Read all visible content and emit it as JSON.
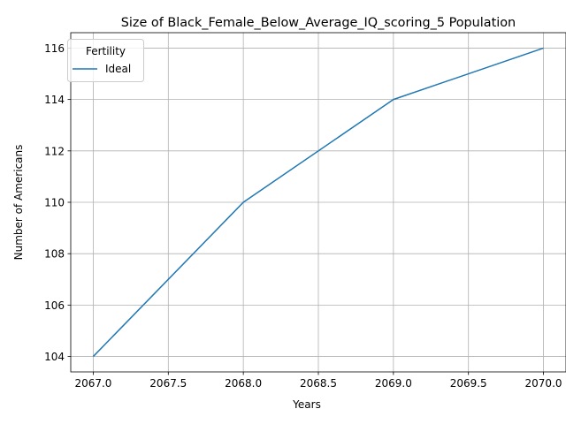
{
  "chart_data": {
    "type": "line",
    "title": "Size of Black_Female_Below_Average_IQ_scoring_5 Population",
    "xlabel": "Years",
    "ylabel": "Number of Americans",
    "xlim": [
      2066.85,
      2070.15
    ],
    "ylim": [
      103.4,
      116.6
    ],
    "xticks": [
      2067.0,
      2067.5,
      2068.0,
      2068.5,
      2069.0,
      2069.5,
      2070.0
    ],
    "xtick_labels": [
      "2067.0",
      "2067.5",
      "2068.0",
      "2068.5",
      "2069.0",
      "2069.5",
      "2070.0"
    ],
    "yticks": [
      104,
      106,
      108,
      110,
      112,
      114,
      116
    ],
    "ytick_labels": [
      "104",
      "106",
      "108",
      "110",
      "112",
      "114",
      "116"
    ],
    "grid": true,
    "legend": {
      "title": "Fertility",
      "placement": "upper-left"
    },
    "series": [
      {
        "name": "Ideal",
        "color": "#1f77b4",
        "x": [
          2067,
          2068,
          2069,
          2070
        ],
        "values": [
          104,
          110,
          114,
          116
        ]
      }
    ]
  }
}
